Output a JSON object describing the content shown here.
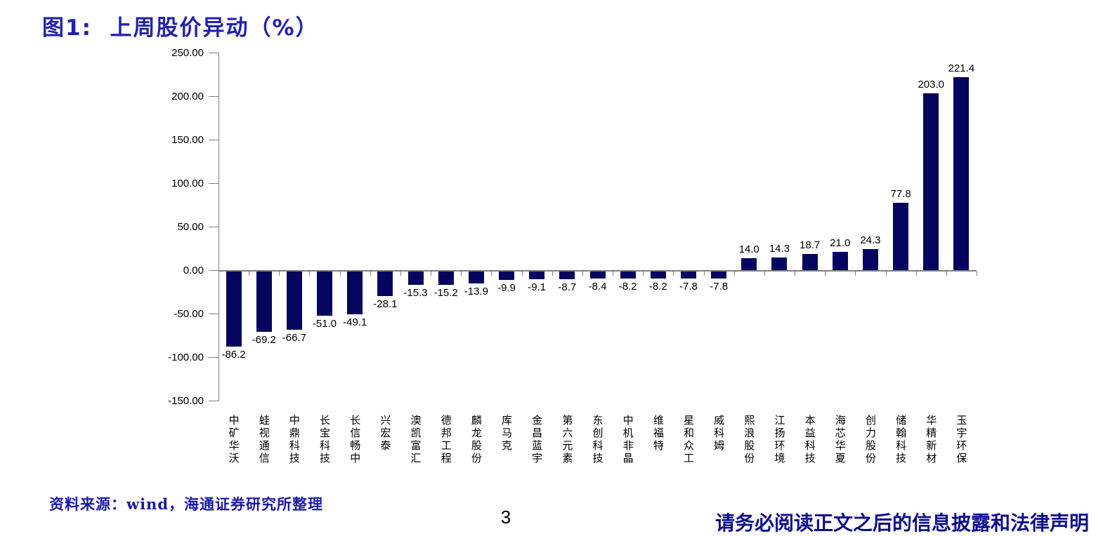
{
  "page": {
    "title": "图1:  上周股价异动（%）",
    "source_note": "资料来源：wind，海通证券研究所整理",
    "page_number": "3",
    "disclaimer": "请务必阅读正文之后的信息披露和法律声明"
  },
  "colors": {
    "bar": "#05055f",
    "title_blue": "#2121b0",
    "footer_blue": "#1a1aa6",
    "disclaimer_blue": "#0d0d8e",
    "axis_gray": "#808080",
    "text_black": "#000000"
  },
  "chart_data": {
    "type": "bar",
    "title": "上周股价异动（%）",
    "categories": [
      "中矿华沃",
      "蛙视通信",
      "中鼎科技",
      "长宝科技",
      "长信畅中",
      "兴宏泰",
      "澳凯富汇",
      "德邦工程",
      "麟龙股份",
      "库马克",
      "金昌蓝宇",
      "第六元素",
      "东创科技",
      "中机非晶",
      "维福特",
      "星和众工",
      "威科姆",
      "熙浪股份",
      "江扬环境",
      "本益科技",
      "海芯华夏",
      "创力股份",
      "储翰科技",
      "华精新材",
      "玉宇环保"
    ],
    "values": [
      -86.2,
      -69.2,
      -66.7,
      -51.0,
      -49.1,
      -28.1,
      -15.3,
      -15.2,
      -13.9,
      -9.9,
      -9.1,
      -8.7,
      -8.4,
      -8.2,
      -8.2,
      -7.8,
      -7.8,
      14.0,
      14.3,
      18.7,
      21.0,
      24.3,
      77.8,
      203.0,
      221.4
    ],
    "value_labels": [
      "-86.2",
      "-69.2",
      "-66.7",
      "-51.0",
      "-49.1",
      "-28.1",
      "-15.3",
      "-15.2",
      "-13.9",
      "-9.9",
      "-9.1",
      "-8.7",
      "-8.4",
      "-8.2",
      "-8.2",
      "-7.8",
      "-7.8",
      "14.0",
      "14.3",
      "18.7",
      "21.0",
      "24.3",
      "77.8",
      "203.0",
      "221.4"
    ],
    "y_tick_values": [
      250,
      200,
      150,
      100,
      50,
      0,
      -50,
      -100,
      -150
    ],
    "y_tick_labels": [
      "250.00",
      "200.00",
      "150.00",
      "100.00",
      "50.00",
      "0.00",
      "-50.00",
      "-100.00",
      "-150.00"
    ],
    "ylim": [
      -150,
      250
    ],
    "grid": false,
    "legend": "none",
    "bar_color": "#05055f",
    "xlabel": "",
    "ylabel": ""
  }
}
